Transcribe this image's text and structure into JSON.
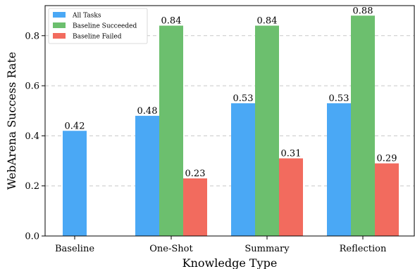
{
  "chart_data": {
    "type": "bar",
    "xlabel": "Knowledge Type",
    "ylabel": "WebArena Success Rate",
    "ylim": [
      0,
      0.92
    ],
    "yticks": [
      "0.0",
      "0.2",
      "0.4",
      "0.6",
      "0.8"
    ],
    "ytick_values": [
      0,
      0.2,
      0.4,
      0.6,
      0.8
    ],
    "grid": true,
    "legend_position": "top-left",
    "categories": [
      "Baseline",
      "One-Shot",
      "Summary",
      "Reflection"
    ],
    "series": [
      {
        "name": "All Tasks",
        "color": "#4aa8f5",
        "values": [
          0.42,
          0.48,
          0.53,
          0.53
        ],
        "labels": [
          "0.42",
          "0.48",
          "0.53",
          "0.53"
        ]
      },
      {
        "name": "Baseline Succeeded",
        "color": "#6cbf6e",
        "values": [
          null,
          0.84,
          0.84,
          0.88
        ],
        "labels": [
          "",
          "0.84",
          "0.84",
          "0.88"
        ]
      },
      {
        "name": "Baseline Failed",
        "color": "#f26b5e",
        "values": [
          null,
          0.23,
          0.31,
          0.29
        ],
        "labels": [
          "",
          "0.23",
          "0.31",
          "0.29"
        ]
      }
    ]
  }
}
